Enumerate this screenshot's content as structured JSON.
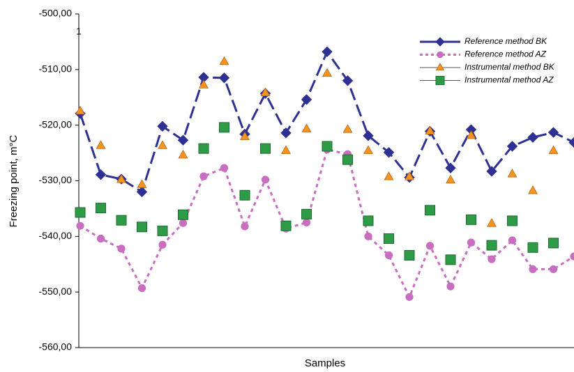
{
  "chart_data": {
    "type": "line",
    "annotation": "1",
    "xlabel": "Samples",
    "ylabel": "Freezing point,  m°C",
    "categories": [
      null,
      null,
      null,
      null,
      null,
      null,
      null,
      null,
      null,
      null,
      null,
      null,
      null,
      null,
      null,
      null,
      null,
      null,
      null,
      null,
      null,
      null,
      null,
      null,
      null
    ],
    "ylim": [
      -560,
      -500
    ],
    "yticks": [
      {
        "value": -560,
        "label": "-560,00"
      },
      {
        "value": -550,
        "label": "-550,00"
      },
      {
        "value": -540,
        "label": "-540,00"
      },
      {
        "value": -530,
        "label": "-530,00"
      },
      {
        "value": -520,
        "label": "-520,00"
      },
      {
        "value": -510,
        "label": "-510,00"
      },
      {
        "value": -500,
        "label": "-500,00"
      }
    ],
    "grid": false,
    "legend": "top-right",
    "series": [
      {
        "name": "Reference method BK",
        "color": "#2e3192",
        "line": "dashed",
        "marker": "diamond",
        "values": [
          -517.9,
          -528.9,
          -529.7,
          -532.0,
          -520.2,
          -522.7,
          -511.4,
          -511.5,
          -521.6,
          -514.3,
          -521.4,
          -515.4,
          -506.8,
          -512.0,
          -521.9,
          -524.9,
          -529.4,
          -521.1,
          -527.7,
          -520.8,
          -528.3,
          -523.8,
          -522.2,
          -521.3,
          -523.1
        ]
      },
      {
        "name": "Reference method AZ",
        "color": "#c86dc0",
        "line": "dotted",
        "marker": "circle",
        "values": [
          -538.1,
          -540.4,
          -542.2,
          -549.3,
          -541.5,
          -537.6,
          -529.2,
          -527.7,
          -538.2,
          -529.8,
          -538.6,
          -537.5,
          -524.4,
          -525.2,
          -540.0,
          -543.4,
          -550.9,
          -541.7,
          -549.0,
          -541.1,
          -544.1,
          -540.7,
          -545.9,
          -545.9,
          -543.6
        ]
      },
      {
        "name": "Instrumental method BK",
        "color": "#f7941d",
        "line": "none",
        "marker": "triangle",
        "values": [
          -517.5,
          -523.7,
          -529.8,
          -530.7,
          -523.7,
          -525.4,
          -512.8,
          -508.6,
          -522.1,
          -514.2,
          -524.6,
          -520.7,
          -510.7,
          -520.8,
          -524.6,
          -529.3,
          -529.3,
          -521.1,
          -529.9,
          -521.9,
          -537.7,
          -528.8,
          -531.8,
          -524.6,
          null
        ]
      },
      {
        "name": "Instrumental method AZ",
        "color": "#2e9b46",
        "line": "none",
        "marker": "square",
        "values": [
          -535.7,
          -534.9,
          -537.1,
          -538.3,
          -539.0,
          -536.1,
          -524.2,
          -520.4,
          -532.6,
          -524.2,
          -538.1,
          -536.0,
          -523.8,
          -526.2,
          -537.2,
          -540.4,
          -543.4,
          -535.3,
          -544.2,
          -537.0,
          -541.6,
          -537.2,
          -542.0,
          -541.2,
          null
        ]
      }
    ]
  }
}
